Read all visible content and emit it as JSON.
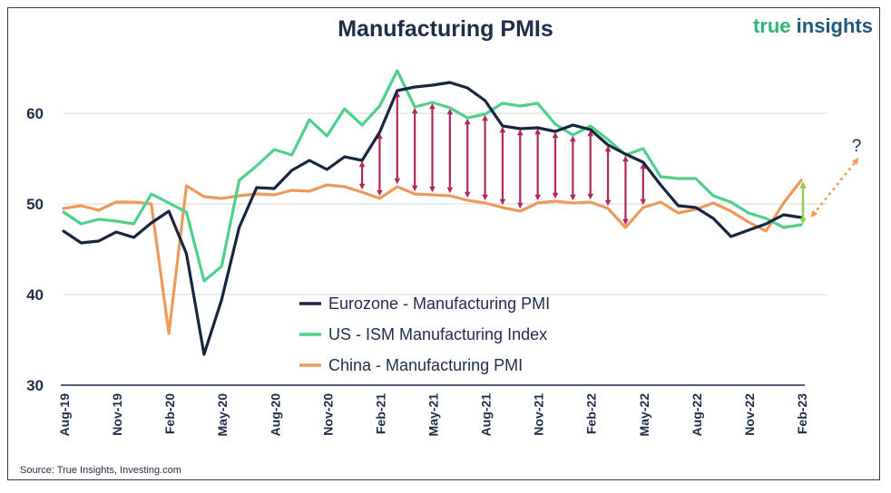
{
  "header": {
    "title": "Manufacturing PMIs",
    "brand_part1": "true",
    "brand_part2": "insights",
    "source": "Source: True Insights, Investing.com",
    "question_mark": "?"
  },
  "colors": {
    "eurozone": "#1a2540",
    "us": "#4fd08d",
    "china": "#ee9a5c",
    "arrows_red": "#b0285c",
    "arrow_green": "#8fd14f",
    "arrow_dotted": "#ee9a5c",
    "grid": "#d9d9d9"
  },
  "chart_data": {
    "type": "line",
    "title": "Manufacturing PMIs",
    "xlabel": "",
    "ylabel": "",
    "ylim": [
      30,
      66
    ],
    "yticks": [
      30,
      40,
      50,
      60
    ],
    "grid": true,
    "legend_position": "lower-center",
    "x": [
      "Aug-19",
      "Sep-19",
      "Oct-19",
      "Nov-19",
      "Dec-19",
      "Jan-20",
      "Feb-20",
      "Mar-20",
      "Apr-20",
      "May-20",
      "Jun-20",
      "Jul-20",
      "Aug-20",
      "Sep-20",
      "Oct-20",
      "Nov-20",
      "Dec-20",
      "Jan-21",
      "Feb-21",
      "Mar-21",
      "Apr-21",
      "May-21",
      "Jun-21",
      "Jul-21",
      "Aug-21",
      "Sep-21",
      "Oct-21",
      "Nov-21",
      "Dec-21",
      "Jan-22",
      "Feb-22",
      "Mar-22",
      "Apr-22",
      "May-22",
      "Jun-22",
      "Jul-22",
      "Aug-22",
      "Sep-22",
      "Oct-22",
      "Nov-22",
      "Dec-22",
      "Jan-23",
      "Feb-23"
    ],
    "xtick_labels": [
      "Aug-19",
      "Nov-19",
      "Feb-20",
      "May-20",
      "Aug-20",
      "Nov-20",
      "Feb-21",
      "May-21",
      "Aug-21",
      "Nov-21",
      "Feb-22",
      "May-22",
      "Aug-22",
      "Nov-22",
      "Feb-23"
    ],
    "series": [
      {
        "name": "Eurozone - Manufacturing PMI",
        "key": "eurozone",
        "values": [
          47.0,
          45.7,
          45.9,
          46.9,
          46.3,
          47.9,
          49.2,
          44.5,
          33.4,
          39.4,
          47.4,
          51.8,
          51.7,
          53.7,
          54.8,
          53.8,
          55.2,
          54.8,
          57.9,
          62.5,
          62.9,
          63.1,
          63.4,
          62.8,
          61.4,
          58.6,
          58.3,
          58.4,
          58.0,
          58.7,
          58.2,
          56.5,
          55.5,
          54.6,
          52.1,
          49.8,
          49.6,
          48.4,
          46.4,
          47.1,
          47.8,
          48.8,
          48.5
        ]
      },
      {
        "name": "US - ISM Manufacturing Index",
        "key": "us",
        "values": [
          49.1,
          47.8,
          48.3,
          48.1,
          47.8,
          51.1,
          50.1,
          49.1,
          41.5,
          43.1,
          52.6,
          54.2,
          56.0,
          55.4,
          59.3,
          57.5,
          60.5,
          58.7,
          60.8,
          64.7,
          60.7,
          61.2,
          60.6,
          59.5,
          59.9,
          61.1,
          60.8,
          61.1,
          58.8,
          57.6,
          58.6,
          57.1,
          55.4,
          56.1,
          53.0,
          52.8,
          52.8,
          50.9,
          50.2,
          49.0,
          48.4,
          47.4,
          47.7
        ]
      },
      {
        "name": "China - Manufacturing PMI",
        "key": "china",
        "values": [
          49.5,
          49.8,
          49.3,
          50.2,
          50.2,
          50.0,
          35.7,
          52.0,
          50.8,
          50.6,
          50.9,
          51.1,
          51.0,
          51.5,
          51.4,
          52.1,
          51.9,
          51.3,
          50.6,
          51.9,
          51.1,
          51.0,
          50.9,
          50.4,
          50.1,
          49.6,
          49.2,
          50.1,
          50.3,
          50.1,
          50.2,
          49.5,
          47.4,
          49.6,
          50.2,
          49.0,
          49.4,
          50.1,
          49.2,
          48.0,
          47.0,
          50.1,
          52.6
        ]
      }
    ],
    "annotations": {
      "divergence_arrows_x_index_range": [
        17,
        33
      ],
      "green_arrow_x_index": 42,
      "forecast_label": "?"
    }
  }
}
